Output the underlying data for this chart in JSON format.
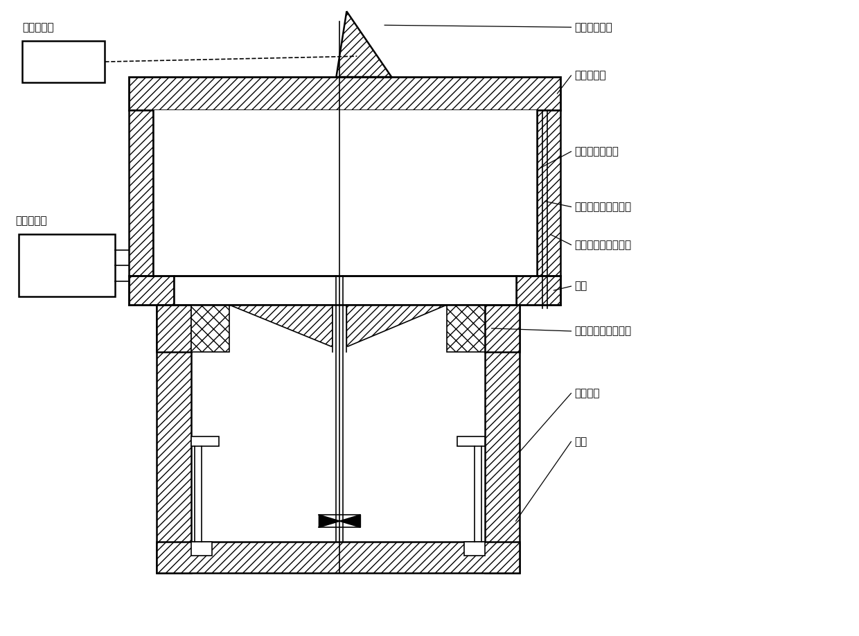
{
  "bg_color": "#ffffff",
  "line_color": "#000000",
  "labels": {
    "optical_prism": "光学三角棱镜",
    "glass_window": "玻璃观察窗",
    "transparent_shell": "透明光学玻璃壳",
    "grid_rod": "测栅极热膨胀陶瓷杆",
    "cathode_rod": "测阴极热膨胀陶瓷杆",
    "anode": "阳极",
    "grid": "栅极（或称聚焦极）",
    "main_vacuum": "主真空室",
    "cathode": "阴极",
    "pyrometer": "高温测温仪",
    "microscope": "读数显微镜"
  },
  "figsize": [
    12.4,
    9.18
  ],
  "dpi": 100
}
